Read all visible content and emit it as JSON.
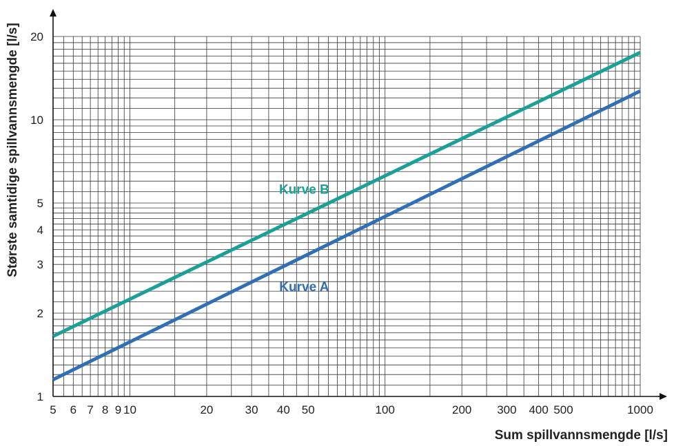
{
  "chart_data": {
    "type": "line",
    "xlabel": "Sum spillvannsmengde [l/s]",
    "ylabel": "Største samtidige spillvannsmengde [l/s]",
    "xscale": "log",
    "yscale": "log",
    "xlim": [
      5,
      1000
    ],
    "ylim": [
      1,
      20
    ],
    "grid": true,
    "x_tick_labels": [
      "5",
      "6",
      "7",
      "8",
      "9",
      "10",
      "20",
      "30",
      "40",
      "50",
      "100",
      "200",
      "300",
      "400",
      "500",
      "1000"
    ],
    "x_tick_values": [
      5,
      6,
      7,
      8,
      9,
      10,
      20,
      30,
      40,
      50,
      100,
      200,
      300,
      400,
      500,
      1000
    ],
    "y_tick_labels": [
      "1",
      "2",
      "3",
      "4",
      "5",
      "10",
      "20"
    ],
    "y_tick_values": [
      1,
      2,
      3,
      4,
      5,
      10,
      20
    ],
    "series": [
      {
        "name": "Kurve A",
        "color": "#2f6fb5",
        "x": [
          5,
          1000
        ],
        "y": [
          1.15,
          12.7
        ]
      },
      {
        "name": "Kurve B",
        "color": "#1aa097",
        "x": [
          5,
          1000
        ],
        "y": [
          1.65,
          17.5
        ]
      }
    ],
    "annotations": [
      {
        "text": "Kurve B",
        "x": 40,
        "y": 5.4,
        "series": "Kurve B"
      },
      {
        "text": "Kurve A",
        "x": 40,
        "y": 2.4,
        "series": "Kurve A"
      }
    ]
  }
}
